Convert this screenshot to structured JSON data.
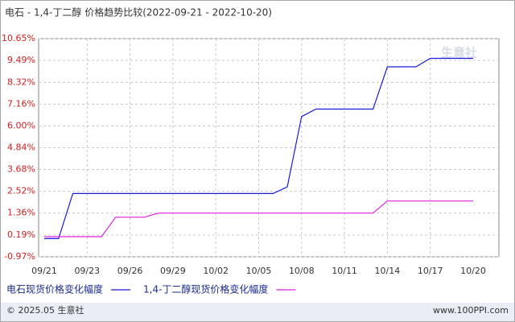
{
  "chart_data": {
    "type": "line",
    "title": "电石 - 1,4-丁二醇 价格趋势比较(2022-09-21 - 2022-10-20)",
    "categories": [
      "09/21",
      null,
      null,
      "09/23",
      null,
      null,
      "09/26",
      null,
      null,
      "09/29",
      null,
      null,
      "10/02",
      null,
      null,
      "10/05",
      null,
      null,
      "10/08",
      null,
      null,
      "10/11",
      null,
      null,
      "10/14",
      null,
      null,
      "10/17",
      null,
      null,
      "10/20"
    ],
    "series": [
      {
        "name": "电石现货价格变化幅度",
        "color": "#1a1adb",
        "values": [
          0,
          0,
          2.4,
          2.4,
          2.4,
          2.4,
          2.4,
          2.4,
          2.4,
          2.4,
          2.4,
          2.4,
          2.4,
          2.4,
          2.4,
          2.4,
          2.4,
          2.75,
          6.5,
          6.9,
          6.9,
          6.9,
          6.9,
          6.9,
          9.15,
          9.15,
          9.15,
          9.6,
          9.6,
          9.6,
          9.6
        ]
      },
      {
        "name": "1,4-丁二醇现货价格变化幅度",
        "color": "#e020e0",
        "values": [
          0.1,
          0.1,
          0.1,
          0.1,
          0.1,
          1.14,
          1.14,
          1.14,
          1.36,
          1.36,
          1.36,
          1.36,
          1.36,
          1.36,
          1.36,
          1.36,
          1.36,
          1.36,
          1.36,
          1.36,
          1.36,
          1.36,
          1.36,
          1.36,
          2.0,
          2.0,
          2.0,
          2.0,
          2.0,
          2.0,
          2.0
        ]
      }
    ],
    "ylim": [
      -0.97,
      10.65
    ],
    "yticks": [
      {
        "value": -0.97,
        "label": "-0.97%"
      },
      {
        "value": 0.19,
        "label": "0.19%"
      },
      {
        "value": 1.36,
        "label": "1.36%"
      },
      {
        "value": 2.52,
        "label": "2.52%"
      },
      {
        "value": 3.68,
        "label": "3.68%"
      },
      {
        "value": 4.84,
        "label": "4.84%"
      },
      {
        "value": 6.0,
        "label": "6.00%"
      },
      {
        "value": 7.16,
        "label": "7.16%"
      },
      {
        "value": 8.32,
        "label": "8.32%"
      },
      {
        "value": 9.49,
        "label": "9.49%"
      },
      {
        "value": 10.65,
        "label": "10.65%"
      }
    ],
    "grid": true,
    "watermark": "生意社",
    "footer_left": "© 2025.05 生意社",
    "footer_right": "www.100PPI.com"
  }
}
